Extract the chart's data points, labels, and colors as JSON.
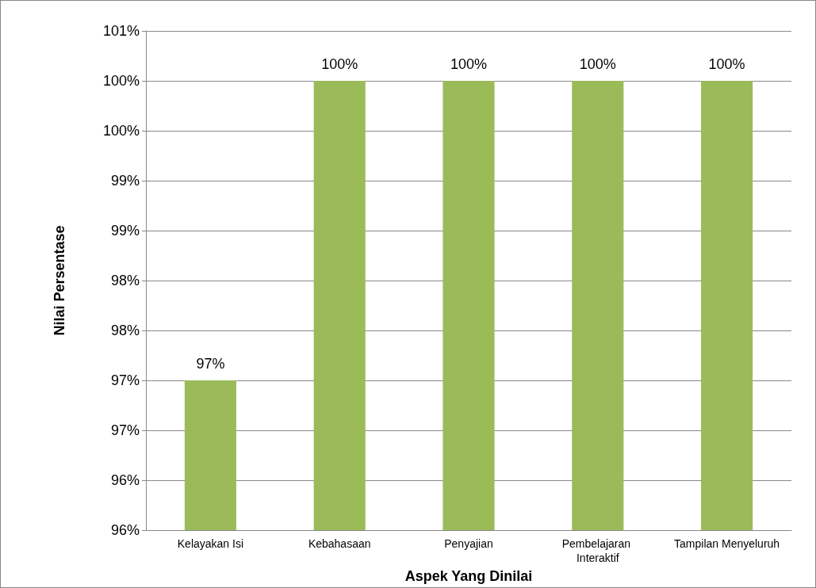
{
  "chart_data": {
    "type": "bar",
    "xlabel": "Aspek Yang Dinilai",
    "ylabel": "Nilai Persentase",
    "categories": [
      "Kelayakan Isi",
      "Kebahasaan",
      "Penyajian",
      "Pembelajaran Interaktif",
      "Tampilan Menyeluruh"
    ],
    "values": [
      97,
      100,
      100,
      100,
      100
    ],
    "value_labels": [
      "97%",
      "100%",
      "100%",
      "100%",
      "100%"
    ],
    "color": "#9bbb59",
    "ylim": [
      95.5,
      100.5
    ],
    "yticks": [
      {
        "value": 95.5,
        "label": "96%"
      },
      {
        "value": 96,
        "label": "96%"
      },
      {
        "value": 96.5,
        "label": "97%"
      },
      {
        "value": 97,
        "label": "97%"
      },
      {
        "value": 97.5,
        "label": "98%"
      },
      {
        "value": 98,
        "label": "98%"
      },
      {
        "value": 98.5,
        "label": "99%"
      },
      {
        "value": 99,
        "label": "99%"
      },
      {
        "value": 99.5,
        "label": "100%"
      },
      {
        "value": 100,
        "label": "100%"
      },
      {
        "value": 100.5,
        "label": "101%"
      }
    ],
    "grid": "y"
  }
}
